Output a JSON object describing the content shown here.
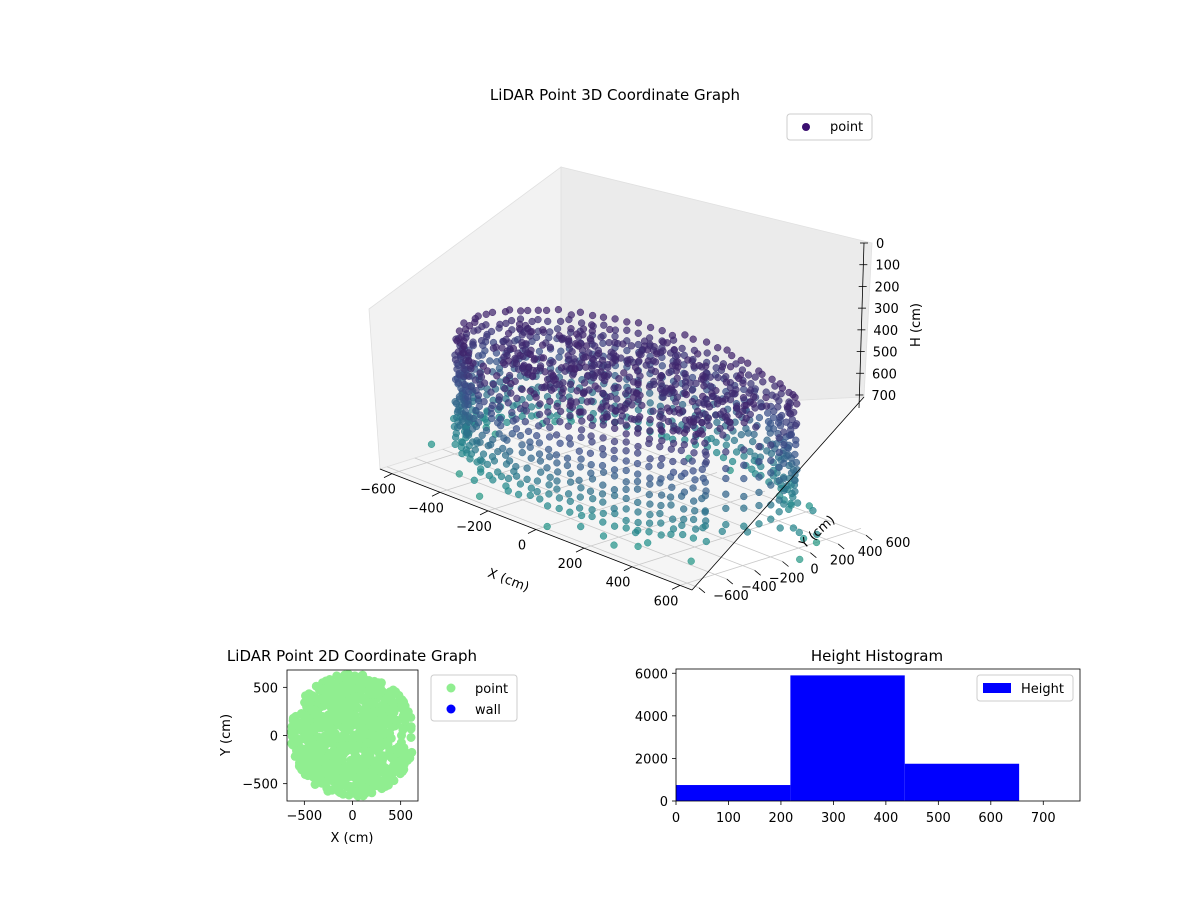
{
  "chart_data": [
    {
      "type": "scatter",
      "dimension": "3d",
      "title": "LiDAR Point 3D Coordinate Graph",
      "xlabel": "X (cm)",
      "ylabel": "Y (cm)",
      "zlabel": "H (cm)",
      "x_ticks": [
        "−600",
        "−400",
        "−200",
        "0",
        "200",
        "400",
        "600"
      ],
      "y_ticks": [
        "−600",
        "−400",
        "−200",
        "0",
        "200",
        "400",
        "600"
      ],
      "z_ticks": [
        "0",
        "100",
        "200",
        "300",
        "400",
        "500",
        "600",
        "700"
      ],
      "xlim": [
        -650,
        650
      ],
      "ylim": [
        -650,
        650
      ],
      "zlim": [
        0,
        760
      ],
      "z_inverted": true,
      "legend": {
        "placement": "top-right",
        "entries": [
          {
            "label": "point",
            "color": "#3b0f70"
          }
        ]
      },
      "colormap": "viridis",
      "series": [
        {
          "name": "point",
          "shape": "cylindrical wall with a gap on the +X side plus a floor disc and scattered outliers",
          "radius_cm": 600,
          "height_range_cm": [
            150,
            650
          ],
          "gap_angle_deg": [
            330,
            30
          ]
        }
      ]
    },
    {
      "type": "scatter",
      "title": "LiDAR Point 2D Coordinate Graph",
      "xlabel": "X (cm)",
      "ylabel": "Y (cm)",
      "x_ticks": [
        "−500",
        "0",
        "500"
      ],
      "y_ticks": [
        "−500",
        "0",
        "500"
      ],
      "xlim": [
        -680,
        680
      ],
      "ylim": [
        -680,
        680
      ],
      "legend": {
        "placement": "outside-right",
        "entries": [
          {
            "label": "point",
            "color": "#90ee90"
          },
          {
            "label": "wall",
            "color": "#0000ff"
          }
        ]
      },
      "series": [
        {
          "name": "point",
          "color": "#90ee90",
          "shape": "filled disc, radius ≈ 620 cm, notch on +X side"
        },
        {
          "name": "wall",
          "color": "#0000ff",
          "points": []
        }
      ]
    },
    {
      "type": "bar",
      "subtype": "histogram",
      "title": "Height Histogram",
      "x_ticks": [
        "0",
        "100",
        "200",
        "300",
        "400",
        "500",
        "600",
        "700"
      ],
      "y_ticks": [
        "0",
        "2000",
        "4000",
        "6000"
      ],
      "xlim": [
        0,
        770
      ],
      "ylim": [
        0,
        6200
      ],
      "legend": {
        "placement": "top-right",
        "entries": [
          {
            "label": "Height",
            "color": "#0000ff"
          }
        ]
      },
      "bins": [
        {
          "start": 0,
          "end": 218,
          "count": 750
        },
        {
          "start": 218,
          "end": 436,
          "count": 5900
        },
        {
          "start": 436,
          "end": 654,
          "count": 1750
        }
      ],
      "color": "#0000ff"
    }
  ]
}
